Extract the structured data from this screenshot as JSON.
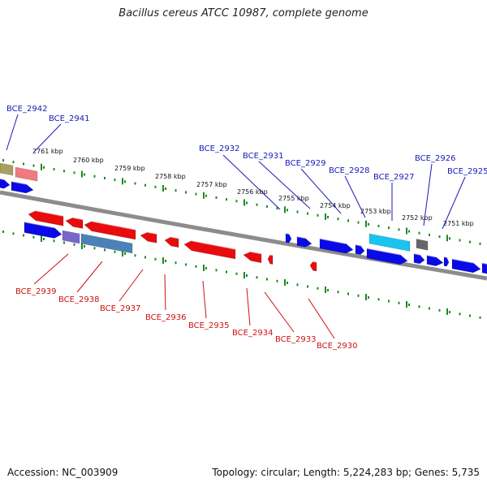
{
  "title": "Bacillus cereus ATCC 10987, complete genome",
  "footer": {
    "accession": "Accession: NC_003909",
    "summary": "Topology: circular; Length: 5,224,283 bp; Genes: 5,735"
  },
  "kbp_labels": [
    "2761 kbp",
    "2760 kbp",
    "2759 kbp",
    "2758 kbp",
    "2757 kbp",
    "2756 kbp",
    "2755 kbp",
    "2754 kbp",
    "2753 kbp",
    "2752 kbp",
    "2751 kbp"
  ],
  "genes_top": [
    "BCE_2942",
    "BCE_2941",
    "BCE_2932",
    "BCE_2931",
    "BCE_2929",
    "BCE_2928",
    "BCE_2927",
    "BCE_2926",
    "BCE_2925"
  ],
  "genes_bottom": [
    "BCE_2939",
    "BCE_2938",
    "BCE_2937",
    "BCE_2936",
    "BCE_2935",
    "BCE_2934",
    "BCE_2933",
    "BCE_2930"
  ],
  "colors": {
    "forward": "#0a0ae6",
    "reverse": "#e80c0c",
    "backbone": "#8c8c8c",
    "ticks": "#1c8a1c",
    "label_top": "#1a1ab8",
    "label_bottom": "#cc1111",
    "highlight_cyan": "#19c4f0",
    "highlight_steel": "#4a82b8",
    "highlight_purple": "#7766cc",
    "highlight_olive": "#a8a060",
    "highlight_pink": "#f07a80",
    "grey_gene": "#666666"
  }
}
